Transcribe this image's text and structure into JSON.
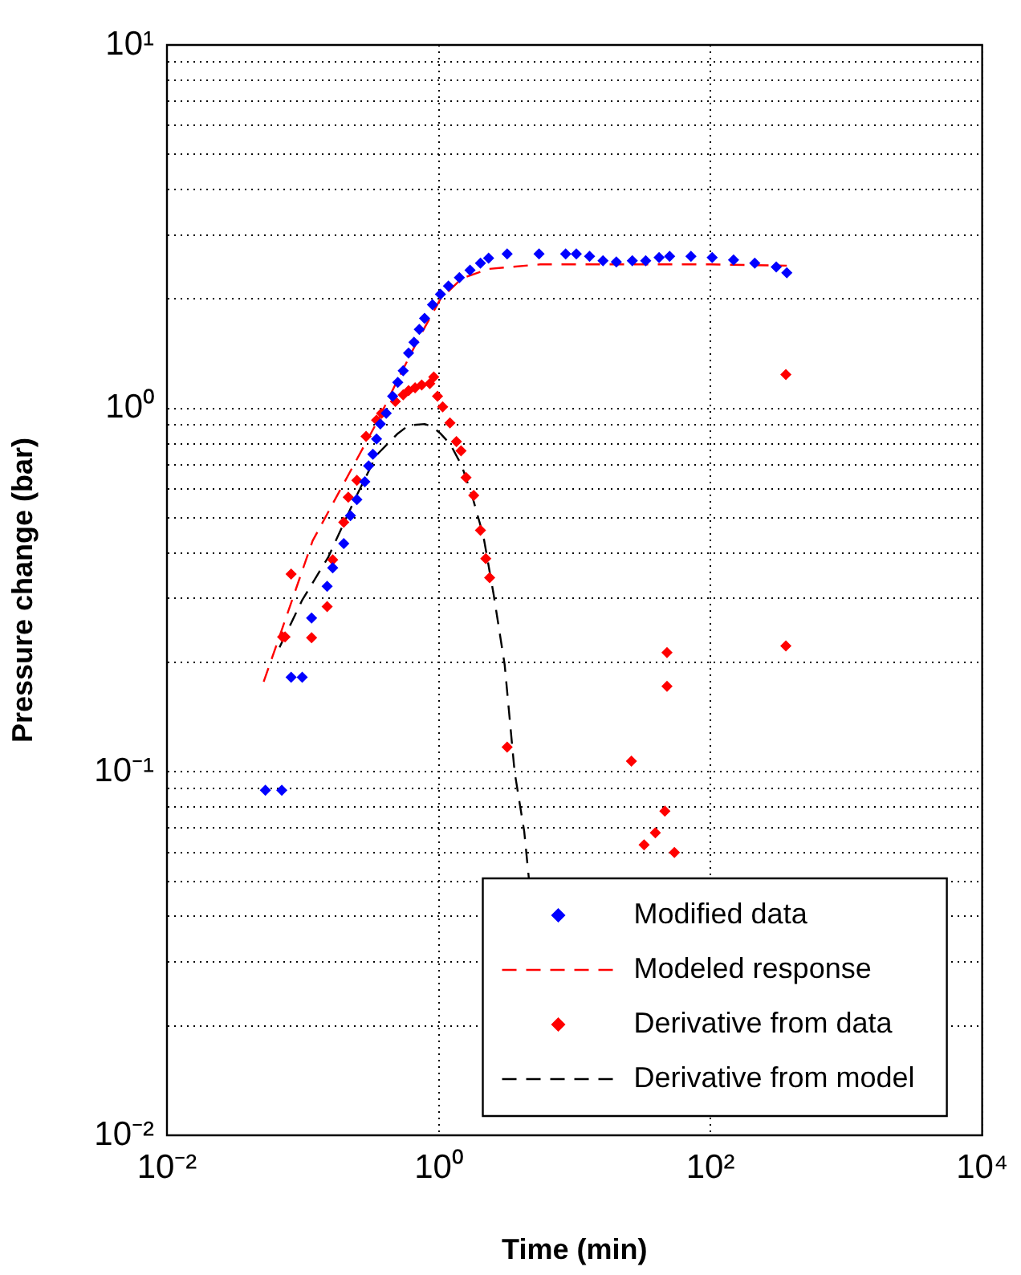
{
  "chart_data": {
    "type": "scatter",
    "xlabel": "Time (min)",
    "ylabel": "Pressure change (bar)",
    "log": "xy",
    "xlim": [
      0.01,
      10000
    ],
    "ylim": [
      0.01,
      10
    ],
    "xticks": [
      {
        "value": 0.01,
        "label": "10⁻²"
      },
      {
        "value": 1,
        "label": "10⁰"
      },
      {
        "value": 100,
        "label": "10²"
      },
      {
        "value": 10000,
        "label": "10⁴"
      }
    ],
    "yticks": [
      {
        "value": 0.01,
        "label": "10⁻²"
      },
      {
        "value": 0.02,
        "label": null
      },
      {
        "value": 0.03,
        "label": null
      },
      {
        "value": 0.04,
        "label": null
      },
      {
        "value": 0.05,
        "label": null
      },
      {
        "value": 0.06,
        "label": null
      },
      {
        "value": 0.07,
        "label": null
      },
      {
        "value": 0.08,
        "label": null
      },
      {
        "value": 0.09,
        "label": null
      },
      {
        "value": 0.1,
        "label": "10⁻¹"
      },
      {
        "value": 0.2,
        "label": null
      },
      {
        "value": 0.3,
        "label": null
      },
      {
        "value": 0.4,
        "label": null
      },
      {
        "value": 0.5,
        "label": null
      },
      {
        "value": 0.6,
        "label": null
      },
      {
        "value": 0.7,
        "label": null
      },
      {
        "value": 0.8,
        "label": null
      },
      {
        "value": 0.9,
        "label": null
      },
      {
        "value": 1,
        "label": "10⁰"
      },
      {
        "value": 2,
        "label": null
      },
      {
        "value": 3,
        "label": null
      },
      {
        "value": 4,
        "label": null
      },
      {
        "value": 5,
        "label": null
      },
      {
        "value": 6,
        "label": null
      },
      {
        "value": 7,
        "label": null
      },
      {
        "value": 8,
        "label": null
      },
      {
        "value": 9,
        "label": null
      },
      {
        "value": 10,
        "label": "10¹"
      }
    ],
    "grid": true,
    "legend": "bottom right",
    "series": [
      {
        "name": "Modified data",
        "marker": "diamond",
        "color": "#0000ff",
        "x": [
          0.053,
          0.07,
          0.082,
          0.099,
          0.116,
          0.151,
          0.166,
          0.2,
          0.224,
          0.25,
          0.286,
          0.305,
          0.328,
          0.349,
          0.372,
          0.411,
          0.458,
          0.5,
          0.548,
          0.6,
          0.658,
          0.72,
          0.787,
          0.9,
          1.03,
          1.18,
          1.42,
          1.7,
          2.03,
          2.33,
          3.19,
          5.48,
          8.6,
          10.3,
          12.9,
          16.2,
          20.3,
          26.6,
          33.4,
          41.9,
          50.1,
          71.9,
          103,
          148,
          212,
          305,
          365
        ],
        "values": [
          0.089,
          0.089,
          0.182,
          0.182,
          0.265,
          0.324,
          0.364,
          0.425,
          0.507,
          0.561,
          0.628,
          0.695,
          0.748,
          0.824,
          0.906,
          0.97,
          1.08,
          1.18,
          1.27,
          1.42,
          1.52,
          1.65,
          1.77,
          1.93,
          2.06,
          2.17,
          2.29,
          2.4,
          2.51,
          2.59,
          2.66,
          2.66,
          2.66,
          2.66,
          2.62,
          2.55,
          2.53,
          2.55,
          2.55,
          2.6,
          2.62,
          2.62,
          2.6,
          2.56,
          2.51,
          2.45,
          2.36
        ]
      },
      {
        "name": "Modeled response",
        "type": "line",
        "marker": "none",
        "line_style": "dashed",
        "color": "#ff0000",
        "x": [
          0.0515,
          0.069,
          0.118,
          0.203,
          0.349,
          0.5,
          0.72,
          1.03,
          1.48,
          2.33,
          5.6,
          20,
          100,
          365
        ],
        "values": [
          0.177,
          0.242,
          0.432,
          0.628,
          0.912,
          1.2,
          1.57,
          2.0,
          2.28,
          2.42,
          2.49,
          2.49,
          2.49,
          2.47
        ]
      },
      {
        "name": "Derivative from data",
        "marker": "diamond",
        "color": "#ff0000",
        "x": [
          0.071,
          0.074,
          0.082,
          0.116,
          0.151,
          0.166,
          0.2,
          0.216,
          0.25,
          0.292,
          0.349,
          0.38,
          0.48,
          0.548,
          0.6,
          0.67,
          0.75,
          0.86,
          0.92,
          0.98,
          1.07,
          1.21,
          1.35,
          1.46,
          1.59,
          1.81,
          2.03,
          2.22,
          2.37,
          3.19,
          26.2,
          32.5,
          39.3,
          46.2,
          47.9,
          47.9,
          54.3,
          359,
          359
        ],
        "values": [
          0.235,
          0.235,
          0.35,
          0.234,
          0.285,
          0.383,
          0.486,
          0.57,
          0.634,
          0.838,
          0.928,
          0.97,
          1.045,
          1.09,
          1.12,
          1.14,
          1.16,
          1.17,
          1.22,
          1.08,
          1.01,
          0.912,
          0.81,
          0.764,
          0.645,
          0.576,
          0.462,
          0.386,
          0.342,
          0.117,
          0.107,
          0.063,
          0.068,
          0.078,
          0.213,
          0.172,
          0.06,
          1.24,
          0.222
        ]
      },
      {
        "name": "Derivative from model",
        "type": "line",
        "marker": "none",
        "line_style": "dashed",
        "color": "#000000",
        "x": [
          0.0674,
          0.099,
          0.154,
          0.244,
          0.349,
          0.5,
          0.6,
          0.787,
          0.9,
          1.03,
          1.22,
          1.48,
          1.78,
          2.13,
          2.54,
          3.06,
          3.62,
          4.26,
          4.62
        ],
        "values": [
          0.22,
          0.297,
          0.39,
          0.567,
          0.744,
          0.853,
          0.898,
          0.906,
          0.89,
          0.853,
          0.796,
          0.695,
          0.567,
          0.447,
          0.307,
          0.197,
          0.1,
          0.0686,
          0.0505
        ]
      }
    ]
  }
}
